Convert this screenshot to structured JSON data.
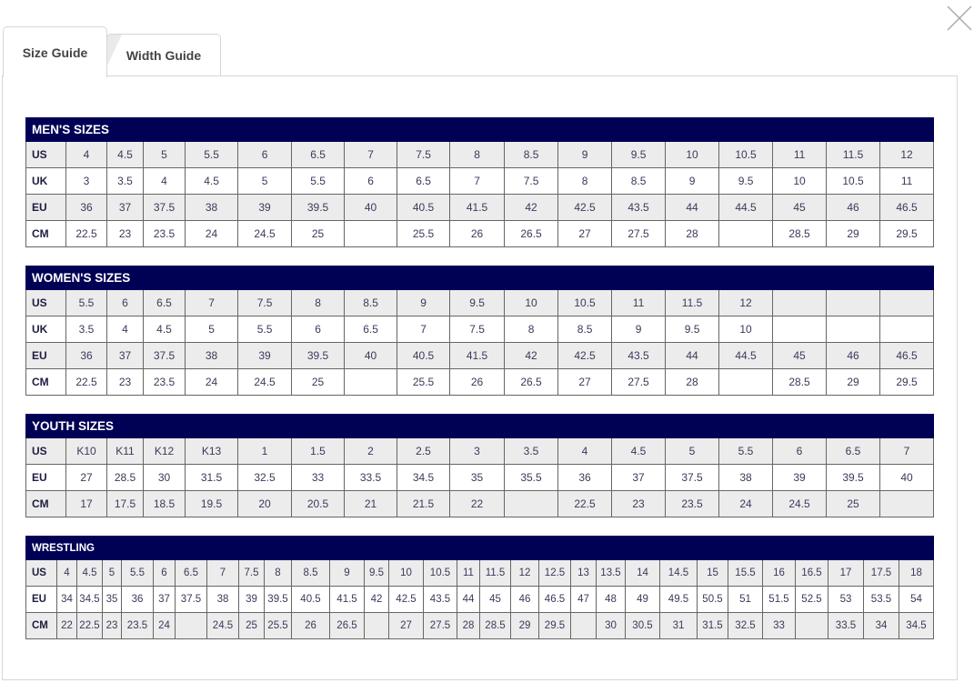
{
  "tabs": [
    {
      "label": "Size Guide",
      "active": true
    },
    {
      "label": "Width Guide",
      "active": false
    }
  ],
  "close_icon": "close-x-icon",
  "colors": {
    "header": "#000055",
    "row_alt": "#ececec"
  },
  "tables": [
    {
      "id": "mens",
      "title": "MEN'S SIZES",
      "rows": [
        {
          "label": "US",
          "values": [
            "4",
            "4.5",
            "5",
            "5.5",
            "6",
            "6.5",
            "7",
            "7.5",
            "8",
            "8.5",
            "9",
            "9.5",
            "10",
            "10.5",
            "11",
            "11.5",
            "12"
          ]
        },
        {
          "label": "UK",
          "values": [
            "3",
            "3.5",
            "4",
            "4.5",
            "5",
            "5.5",
            "6",
            "6.5",
            "7",
            "7.5",
            "8",
            "8.5",
            "9",
            "9.5",
            "10",
            "10.5",
            "11"
          ]
        },
        {
          "label": "EU",
          "values": [
            "36",
            "37",
            "37.5",
            "38",
            "39",
            "39.5",
            "40",
            "40.5",
            "41.5",
            "42",
            "42.5",
            "43.5",
            "44",
            "44.5",
            "45",
            "46",
            "46.5"
          ]
        },
        {
          "label": "CM",
          "values": [
            "22.5",
            "23",
            "23.5",
            "24",
            "24.5",
            "25",
            "",
            "25.5",
            "26",
            "26.5",
            "27",
            "27.5",
            "28",
            "",
            "28.5",
            "29",
            "29.5"
          ]
        }
      ]
    },
    {
      "id": "womens",
      "title": "WOMEN'S SIZES",
      "rows": [
        {
          "label": "US",
          "values": [
            "5.5",
            "6",
            "6.5",
            "7",
            "7.5",
            "8",
            "8.5",
            "9",
            "9.5",
            "10",
            "10.5",
            "11",
            "11.5",
            "12",
            "",
            "",
            ""
          ]
        },
        {
          "label": "UK",
          "values": [
            "3.5",
            "4",
            "4.5",
            "5",
            "5.5",
            "6",
            "6.5",
            "7",
            "7.5",
            "8",
            "8.5",
            "9",
            "9.5",
            "10",
            "",
            "",
            ""
          ]
        },
        {
          "label": "EU",
          "values": [
            "36",
            "37",
            "37.5",
            "38",
            "39",
            "39.5",
            "40",
            "40.5",
            "41.5",
            "42",
            "42.5",
            "43.5",
            "44",
            "44.5",
            "45",
            "46",
            "46.5"
          ]
        },
        {
          "label": "CM",
          "values": [
            "22.5",
            "23",
            "23.5",
            "24",
            "24.5",
            "25",
            "",
            "25.5",
            "26",
            "26.5",
            "27",
            "27.5",
            "28",
            "",
            "28.5",
            "29",
            "29.5"
          ]
        }
      ]
    },
    {
      "id": "youth",
      "title": "YOUTH SIZES",
      "rows": [
        {
          "label": "US",
          "values": [
            "K10",
            "K11",
            "K12",
            "K13",
            "1",
            "1.5",
            "2",
            "2.5",
            "3",
            "3.5",
            "4",
            "4.5",
            "5",
            "5.5",
            "6",
            "6.5",
            "7"
          ]
        },
        {
          "label": "EU",
          "values": [
            "27",
            "28.5",
            "30",
            "31.5",
            "32.5",
            "33",
            "33.5",
            "34.5",
            "35",
            "35.5",
            "36",
            "37",
            "37.5",
            "38",
            "39",
            "39.5",
            "40"
          ]
        },
        {
          "label": "CM",
          "values": [
            "17",
            "17.5",
            "18.5",
            "19.5",
            "20",
            "20.5",
            "21",
            "21.5",
            "22",
            "",
            "22.5",
            "23",
            "23.5",
            "24",
            "24.5",
            "25",
            ""
          ]
        }
      ]
    },
    {
      "id": "wrestling",
      "title": "WRESTLING",
      "rows": [
        {
          "label": "US",
          "values": [
            "4",
            "4.5",
            "5",
            "5.5",
            "6",
            "6.5",
            "7",
            "7.5",
            "8",
            "8.5",
            "9",
            "9.5",
            "10",
            "10.5",
            "11",
            "11.5",
            "12",
            "12.5",
            "13",
            "13.5",
            "14",
            "14.5",
            "15",
            "15.5",
            "16",
            "16.5",
            "17",
            "17.5",
            "18"
          ]
        },
        {
          "label": "EU",
          "values": [
            "34",
            "34.5",
            "35",
            "36",
            "37",
            "37.5",
            "38",
            "39",
            "39.5",
            "40.5",
            "41.5",
            "42",
            "42.5",
            "43.5",
            "44",
            "45",
            "46",
            "46.5",
            "47",
            "48",
            "49",
            "49.5",
            "50.5",
            "51",
            "51.5",
            "52.5",
            "53",
            "53.5",
            "54"
          ]
        },
        {
          "label": "CM",
          "values": [
            "22",
            "22.5",
            "23",
            "23.5",
            "24",
            "",
            "24.5",
            "25",
            "25.5",
            "26",
            "26.5",
            "",
            "27",
            "27.5",
            "28",
            "28.5",
            "29",
            "29.5",
            "",
            "30",
            "30.5",
            "31",
            "31.5",
            "32.5",
            "33",
            "",
            "33.5",
            "34",
            "34.5"
          ]
        }
      ]
    }
  ]
}
